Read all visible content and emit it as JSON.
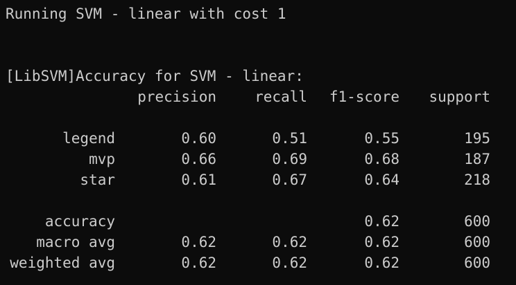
{
  "terminal": {
    "run_line": "Running SVM - linear with cost 1",
    "accuracy_header": "[LibSVM]Accuracy for SVM - linear:",
    "columns": [
      "precision",
      "recall",
      "f1-score",
      "support"
    ],
    "class_rows": [
      {
        "label": "legend",
        "precision": "0.60",
        "recall": "0.51",
        "f1": "0.55",
        "support": "195"
      },
      {
        "label": "mvp",
        "precision": "0.66",
        "recall": "0.69",
        "f1": "0.68",
        "support": "187"
      },
      {
        "label": "star",
        "precision": "0.61",
        "recall": "0.67",
        "f1": "0.64",
        "support": "218"
      }
    ],
    "summary_rows": [
      {
        "label": "accuracy",
        "precision": "",
        "recall": "",
        "f1": "0.62",
        "support": "600"
      },
      {
        "label": "macro avg",
        "precision": "0.62",
        "recall": "0.62",
        "f1": "0.62",
        "support": "600"
      },
      {
        "label": "weighted avg",
        "precision": "0.62",
        "recall": "0.62",
        "f1": "0.62",
        "support": "600"
      }
    ],
    "colors": {
      "background": "#0c0c0c",
      "foreground": "#cccccc"
    }
  }
}
